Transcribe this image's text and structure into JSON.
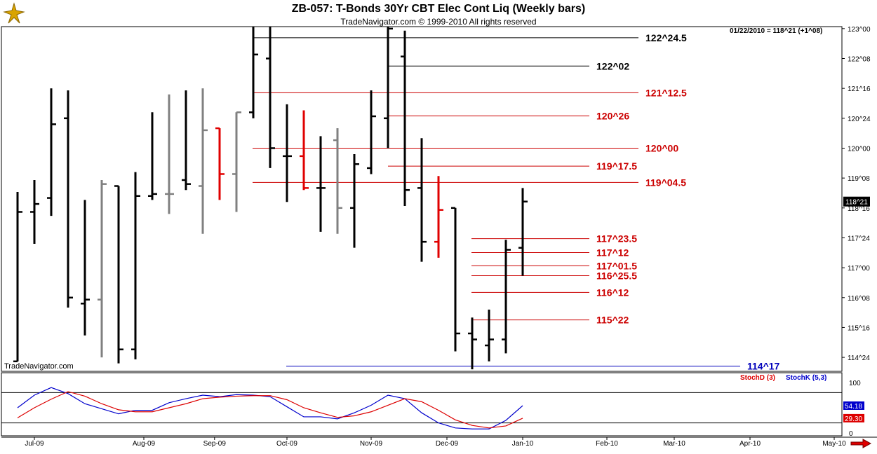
{
  "header": {
    "title": "ZB-057:  T-Bonds 30Yr CBT Elec Cont Liq  (Weekly bars)",
    "subtitle": "TradeNavigator.com © 1999-2010 All rights reserved",
    "watermark": "TradeNavigator.com",
    "info": "01/22/2010 = 118^21 (+1^08)",
    "logo_icon": "gold-ornament-icon",
    "nav_icon": "red-right-arrow-icon"
  },
  "colors": {
    "up": "#000000",
    "down": "#808080",
    "highlight": "#e00000",
    "level_black": "#000000",
    "level_red": "#cc0000",
    "level_blue": "#0000bb",
    "stoch_d": "#dd0000",
    "stoch_k": "#0000cc"
  },
  "chart_data": [
    {
      "type": "bar",
      "subtype": "ohlc",
      "title": "ZB-057:  T-Bonds 30Yr CBT Elec Cont Liq  (Weekly bars)",
      "y_ticks": [
        "123^00",
        "122^08",
        "121^16",
        "120^24",
        "120^00",
        "119^08",
        "118^16",
        "117^24",
        "117^00",
        "116^08",
        "115^16",
        "114^24"
      ],
      "y_tick_values": [
        123.0,
        122.25,
        121.5,
        120.75,
        120.0,
        119.25,
        118.5,
        117.75,
        117.0,
        116.25,
        115.5,
        114.75
      ],
      "ylim": [
        114.4,
        123.05
      ],
      "x_ticks": [
        "Jul-09",
        "Aug-09",
        "Sep-09",
        "Oct-09",
        "Nov-09",
        "Dec-09",
        "Jan-10",
        "Feb-10",
        "Mar-10",
        "Apr-10",
        "May-10"
      ],
      "x_tick_positions": [
        1,
        7.5,
        11.7,
        16,
        21,
        25.5,
        30,
        35,
        39,
        43.5,
        48.5
      ],
      "current_price_label": "118^21",
      "current_price": 118.66,
      "bars": [
        {
          "o": 114.65,
          "h": 118.9,
          "l": 114.65,
          "c": 118.4,
          "color": "up"
        },
        {
          "o": 118.4,
          "h": 119.2,
          "l": 117.6,
          "c": 118.6,
          "color": "up"
        },
        {
          "o": 118.75,
          "h": 121.5,
          "l": 118.3,
          "c": 120.6,
          "color": "up"
        },
        {
          "o": 120.75,
          "h": 121.45,
          "l": 116.0,
          "c": 116.25,
          "color": "up"
        },
        {
          "o": 116.1,
          "h": 118.7,
          "l": 115.3,
          "c": 116.2,
          "color": "up"
        },
        {
          "o": 116.2,
          "h": 119.2,
          "l": 114.75,
          "c": 119.1,
          "color": "down"
        },
        {
          "o": 119.05,
          "h": 119.05,
          "l": 114.6,
          "c": 114.95,
          "color": "up"
        },
        {
          "o": 114.95,
          "h": 119.4,
          "l": 114.7,
          "c": 118.8,
          "color": "up"
        },
        {
          "o": 118.8,
          "h": 120.9,
          "l": 118.7,
          "c": 118.85,
          "color": "up"
        },
        {
          "o": 118.85,
          "h": 121.35,
          "l": 118.35,
          "c": 118.85,
          "color": "down"
        },
        {
          "o": 119.2,
          "h": 121.45,
          "l": 118.95,
          "c": 119.1,
          "color": "up"
        },
        {
          "o": 119.05,
          "h": 121.5,
          "l": 117.85,
          "c": 120.45,
          "color": "down"
        },
        {
          "o": 120.5,
          "h": 120.5,
          "l": 118.7,
          "c": 119.35,
          "color": "highlight"
        },
        {
          "o": 119.35,
          "h": 120.9,
          "l": 118.4,
          "c": 120.9,
          "color": "down"
        },
        {
          "o": 120.9,
          "h": 123.05,
          "l": 120.75,
          "c": 122.35,
          "color": "up"
        },
        {
          "o": 122.25,
          "h": 123.05,
          "l": 119.5,
          "c": 120.0,
          "color": "up"
        },
        {
          "o": 119.8,
          "h": 121.1,
          "l": 118.65,
          "c": 119.8,
          "color": "up"
        },
        {
          "o": 119.8,
          "h": 120.95,
          "l": 118.95,
          "c": 119.0,
          "color": "highlight"
        },
        {
          "o": 119.0,
          "h": 120.3,
          "l": 117.9,
          "c": 119.0,
          "color": "up"
        },
        {
          "o": 120.2,
          "h": 120.5,
          "l": 117.85,
          "c": 118.5,
          "color": "down"
        },
        {
          "o": 118.5,
          "h": 119.85,
          "l": 117.5,
          "c": 119.6,
          "color": "up"
        },
        {
          "o": 119.5,
          "h": 121.45,
          "l": 119.35,
          "c": 120.8,
          "color": "up"
        },
        {
          "o": 120.75,
          "h": 123.05,
          "l": 120.0,
          "c": 123.0,
          "color": "up"
        },
        {
          "o": 122.3,
          "h": 122.95,
          "l": 118.55,
          "c": 118.95,
          "color": "up"
        },
        {
          "o": 119.0,
          "h": 120.25,
          "l": 117.15,
          "c": 117.65,
          "color": "up"
        },
        {
          "o": 117.65,
          "h": 119.3,
          "l": 117.25,
          "c": 118.45,
          "color": "highlight"
        },
        {
          "o": 118.5,
          "h": 118.5,
          "l": 114.9,
          "c": 115.35,
          "color": "up"
        },
        {
          "o": 115.35,
          "h": 115.75,
          "l": 114.45,
          "c": 115.2,
          "color": "up"
        },
        {
          "o": 115.05,
          "h": 115.95,
          "l": 114.65,
          "c": 115.2,
          "color": "up"
        },
        {
          "o": 115.2,
          "h": 117.7,
          "l": 114.85,
          "c": 117.45,
          "color": "up"
        },
        {
          "o": 117.5,
          "h": 119.0,
          "l": 116.8,
          "c": 118.66,
          "color": "up"
        }
      ],
      "levels": [
        {
          "label": "122^24.5",
          "value": 122.77,
          "color": "level_black"
        },
        {
          "label": "122^02",
          "value": 122.06,
          "color": "level_black"
        },
        {
          "label": "121^12.5",
          "value": 121.39,
          "color": "level_red"
        },
        {
          "label": "120^26",
          "value": 120.81,
          "color": "level_red"
        },
        {
          "label": "120^00",
          "value": 120.0,
          "color": "level_red"
        },
        {
          "label": "119^17.5",
          "value": 119.55,
          "color": "level_red"
        },
        {
          "label": "119^04.5",
          "value": 119.14,
          "color": "level_red"
        },
        {
          "label": "117^23.5",
          "value": 117.73,
          "color": "level_red"
        },
        {
          "label": "117^12",
          "value": 117.38,
          "color": "level_red"
        },
        {
          "label": "117^01.5",
          "value": 117.05,
          "color": "level_red"
        },
        {
          "label": "116^25.5",
          "value": 116.8,
          "color": "level_red"
        },
        {
          "label": "116^12",
          "value": 116.38,
          "color": "level_red"
        },
        {
          "label": "115^22",
          "value": 115.69,
          "color": "level_red"
        },
        {
          "label": "114^17",
          "value": 114.53,
          "color": "level_blue"
        }
      ]
    },
    {
      "type": "line",
      "title": "",
      "legend": [
        {
          "name": "StochD (3)",
          "color": "stoch_d"
        },
        {
          "name": "StochK (5,3)",
          "color": "stoch_k"
        }
      ],
      "ylim": [
        0,
        100
      ],
      "y_ticks": [
        "100",
        "0"
      ],
      "y_tick_values": [
        100,
        0
      ],
      "reference_lines": [
        80,
        20
      ],
      "last_values": {
        "k": "54.18",
        "d": "29.30"
      },
      "series": [
        {
          "name": "StochK (5,3)",
          "color": "stoch_k",
          "values": [
            50,
            75,
            90,
            78,
            58,
            48,
            38,
            45,
            45,
            60,
            68,
            75,
            72,
            76,
            75,
            72,
            52,
            32,
            32,
            28,
            40,
            55,
            75,
            68,
            40,
            20,
            10,
            8,
            8,
            25,
            54.18
          ]
        },
        {
          "name": "StochD (3)",
          "color": "stoch_d",
          "values": [
            30,
            50,
            67,
            82,
            73,
            58,
            46,
            42,
            42,
            50,
            58,
            68,
            71,
            73,
            74,
            74,
            66,
            50,
            40,
            31,
            34,
            42,
            55,
            68,
            62,
            45,
            26,
            15,
            10,
            14,
            29.3
          ]
        }
      ]
    }
  ]
}
